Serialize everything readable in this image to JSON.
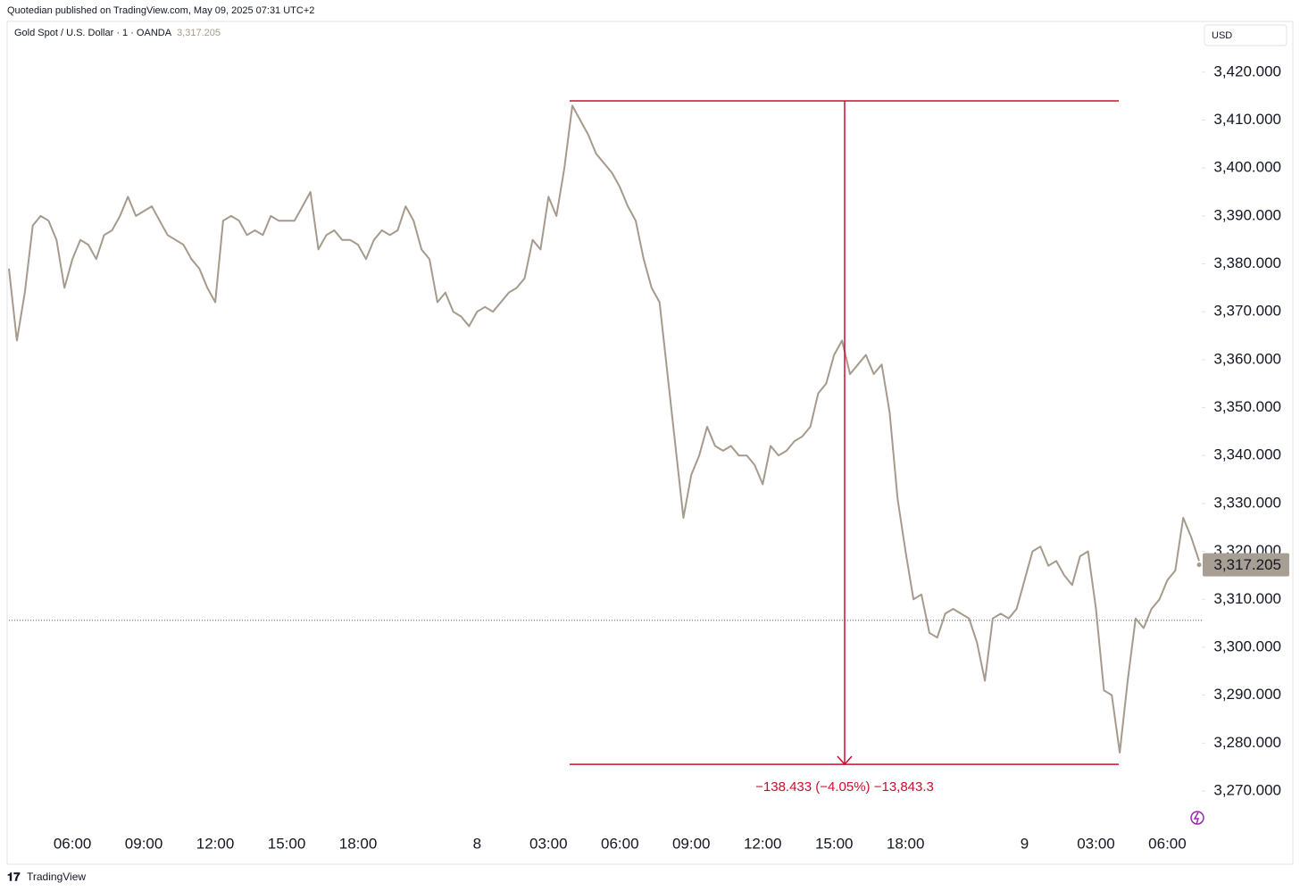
{
  "header": "Quotedian published on TradingView.com, May 09, 2025 07:31 UTC+2",
  "footer": "TradingView",
  "chart_data": {
    "type": "line",
    "title": "Gold Spot / U.S. Dollar · 1 · OANDA",
    "currency": "USD",
    "last_price": {
      "value": 3317.205,
      "label": "3,317.205"
    },
    "reference_line": 3305.6,
    "measure": {
      "high": 3414.0,
      "low": 3275.567,
      "label": "−138.433 (−4.05%) −13,843.3",
      "color": "#c8102e"
    },
    "color": "#a69a8c",
    "categories": [
      null,
      null,
      null,
      null,
      null,
      null,
      null,
      null,
      "06:00",
      null,
      null,
      null,
      null,
      null,
      null,
      null,
      null,
      "09:00",
      null,
      null,
      null,
      null,
      null,
      null,
      null,
      null,
      "12:00",
      null,
      null,
      null,
      null,
      null,
      null,
      null,
      null,
      "15:00",
      null,
      null,
      null,
      null,
      null,
      null,
      null,
      null,
      "18:00",
      null,
      null,
      null,
      null,
      null,
      null,
      null,
      null,
      null,
      null,
      null,
      null,
      null,
      null,
      "8",
      null,
      null,
      null,
      null,
      null,
      null,
      null,
      null,
      "03:00",
      null,
      null,
      null,
      null,
      null,
      null,
      null,
      null,
      "06:00",
      null,
      null,
      null,
      null,
      null,
      null,
      null,
      null,
      "09:00",
      null,
      null,
      null,
      null,
      null,
      null,
      null,
      null,
      "12:00",
      null,
      null,
      null,
      null,
      null,
      null,
      null,
      null,
      "15:00",
      null,
      null,
      null,
      null,
      null,
      null,
      null,
      null,
      "18:00",
      null,
      null,
      null,
      null,
      null,
      null,
      null,
      null,
      null,
      null,
      null,
      null,
      null,
      null,
      "9",
      null,
      null,
      null,
      null,
      null,
      null,
      null,
      null,
      "03:00",
      null,
      null,
      null,
      null,
      null,
      null,
      null,
      null,
      "06:00",
      null,
      null,
      null,
      null
    ],
    "values": [
      3379,
      3364,
      3374,
      3388,
      3390,
      3389,
      3385,
      3375,
      3381,
      3385,
      3384,
      3381,
      3386,
      3387,
      3390,
      3394,
      3390,
      3391,
      3392,
      3389,
      3386,
      3385,
      3384,
      3381,
      3379,
      3375,
      3372,
      3389,
      3390,
      3389,
      3386,
      3387,
      3386,
      3390,
      3389,
      3389,
      3389,
      3392,
      3395,
      3383,
      3386,
      3387,
      3385,
      3385,
      3384,
      3381,
      3385,
      3387,
      3386,
      3387,
      3392,
      3389,
      3383,
      3381,
      3372,
      3374,
      3370,
      3369,
      3367,
      3370,
      3371,
      3370,
      3372,
      3374,
      3375,
      3377,
      3385,
      3383,
      3394,
      3390,
      3400,
      3413,
      3410,
      3407,
      3403,
      3401,
      3399,
      3396,
      3392,
      3389,
      3381,
      3375,
      3372,
      3357,
      3342,
      3327,
      3336,
      3340,
      3346,
      3342,
      3341,
      3342,
      3340,
      3340,
      3338,
      3334,
      3342,
      3340,
      3341,
      3343,
      3344,
      3346,
      3353,
      3355,
      3361,
      3364,
      3357,
      3359,
      3361,
      3357,
      3359,
      3349,
      3331,
      3320,
      3310,
      3311,
      3303,
      3302,
      3307,
      3308,
      3307,
      3306,
      3301,
      3293,
      3306,
      3307,
      3306,
      3308,
      3314,
      3320,
      3321,
      3317,
      3318,
      3315,
      3313,
      3319,
      3320,
      3308,
      3291,
      3290,
      3278,
      3293,
      3306,
      3304,
      3308,
      3310,
      3314,
      3316,
      3327,
      3323,
      3318
    ],
    "ylim": [
      3261.8,
      3430.4
    ],
    "yticks": [
      {
        "value": 3270,
        "label": "3,270.000"
      },
      {
        "value": 3280,
        "label": "3,280.000"
      },
      {
        "value": 3290,
        "label": "3,290.000"
      },
      {
        "value": 3300,
        "label": "3,300.000"
      },
      {
        "value": 3310,
        "label": "3,310.000"
      },
      {
        "value": 3320,
        "label": "3,320.000"
      },
      {
        "value": 3330,
        "label": "3,330.000"
      },
      {
        "value": 3340,
        "label": "3,340.000"
      },
      {
        "value": 3350,
        "label": "3,350.000"
      },
      {
        "value": 3360,
        "label": "3,360.000"
      },
      {
        "value": 3370,
        "label": "3,370.000"
      },
      {
        "value": 3380,
        "label": "3,380.000"
      },
      {
        "value": 3390,
        "label": "3,390.000"
      },
      {
        "value": 3400,
        "label": "3,400.000"
      },
      {
        "value": 3410,
        "label": "3,410.000"
      },
      {
        "value": 3420,
        "label": "3,420.000"
      }
    ]
  }
}
